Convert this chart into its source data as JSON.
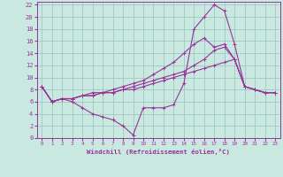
{
  "bg_color": "#c8e8e0",
  "grid_color": "#a0c8c0",
  "line_color": "#993399",
  "tick_color": "#993399",
  "xlabel": "Windchill (Refroidissement éolien,°C)",
  "xlim": [
    -0.5,
    23.5
  ],
  "ylim": [
    0,
    22.5
  ],
  "xticks": [
    0,
    1,
    2,
    3,
    4,
    5,
    6,
    7,
    8,
    9,
    10,
    11,
    12,
    13,
    14,
    15,
    16,
    17,
    18,
    19,
    20,
    21,
    22,
    23
  ],
  "yticks": [
    0,
    2,
    4,
    6,
    8,
    10,
    12,
    14,
    16,
    18,
    20,
    22
  ],
  "line1_x": [
    0,
    1,
    2,
    3,
    4,
    5,
    6,
    7,
    8,
    9,
    10,
    11,
    12,
    13,
    14,
    15,
    16,
    17,
    18,
    19,
    20,
    21,
    22,
    23
  ],
  "line1_y": [
    8.5,
    6.0,
    6.5,
    6.5,
    7.0,
    7.0,
    7.5,
    7.5,
    8.0,
    8.0,
    8.5,
    9.0,
    9.5,
    10.0,
    10.5,
    11.0,
    11.5,
    12.0,
    12.5,
    13.0,
    8.5,
    8.0,
    7.5,
    7.5
  ],
  "line2_x": [
    0,
    1,
    2,
    3,
    4,
    5,
    6,
    7,
    8,
    9,
    10,
    11,
    12,
    13,
    14,
    15,
    16,
    17,
    18,
    19,
    20,
    21,
    22,
    23
  ],
  "line2_y": [
    8.5,
    6.0,
    6.5,
    6.5,
    7.0,
    7.5,
    7.5,
    8.0,
    8.5,
    9.0,
    9.5,
    10.5,
    11.5,
    12.5,
    14.0,
    15.5,
    16.5,
    15.0,
    15.5,
    13.0,
    8.5,
    8.0,
    7.5,
    7.5
  ],
  "line3_x": [
    0,
    1,
    2,
    3,
    4,
    5,
    6,
    7,
    8,
    9,
    10,
    11,
    12,
    13,
    14,
    15,
    16,
    17,
    18,
    19,
    20,
    21,
    22,
    23
  ],
  "line3_y": [
    8.5,
    6.0,
    6.5,
    6.0,
    5.0,
    4.0,
    3.5,
    3.0,
    2.0,
    0.5,
    5.0,
    5.0,
    5.0,
    5.5,
    9.0,
    18.0,
    20.0,
    22.0,
    21.0,
    15.5,
    8.5,
    8.0,
    7.5,
    7.5
  ],
  "line4_x": [
    0,
    1,
    2,
    3,
    4,
    5,
    6,
    7,
    8,
    9,
    10,
    11,
    12,
    13,
    14,
    15,
    16,
    17,
    18,
    19,
    20,
    21,
    22,
    23
  ],
  "line4_y": [
    8.5,
    6.0,
    6.5,
    6.5,
    7.0,
    7.0,
    7.5,
    7.5,
    8.0,
    8.5,
    9.0,
    9.5,
    10.0,
    10.5,
    11.0,
    12.0,
    13.0,
    14.5,
    15.0,
    13.0,
    8.5,
    8.0,
    7.5,
    7.5
  ]
}
